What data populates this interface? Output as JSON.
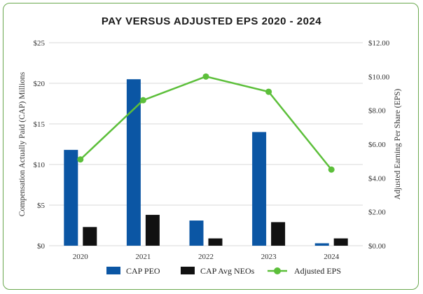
{
  "chart_data": {
    "type": "bar",
    "title": "PAY VERSUS ADJUSTED EPS 2020 - 2024",
    "categories": [
      "2020",
      "2021",
      "2022",
      "2023",
      "2024"
    ],
    "series": [
      {
        "name": "CAP PEO",
        "kind": "bar",
        "axis": "left",
        "color": "#0b56a4",
        "values": [
          11.8,
          20.5,
          3.1,
          14.0,
          0.3
        ]
      },
      {
        "name": "CAP Avg NEOs",
        "kind": "bar",
        "axis": "left",
        "color": "#111111",
        "values": [
          2.3,
          3.8,
          0.9,
          2.9,
          0.9
        ]
      },
      {
        "name": "Adjusted EPS",
        "kind": "line",
        "axis": "right",
        "color": "#5cbf3a",
        "values": [
          5.1,
          8.6,
          10.0,
          9.1,
          4.5
        ]
      }
    ],
    "y_left": {
      "label": "Compensation Actually Paid (CAP) Millions",
      "lim": [
        0,
        25
      ],
      "ticks": [
        0,
        5,
        10,
        15,
        20,
        25
      ],
      "tick_labels": [
        "$0",
        "$5",
        "$10",
        "$15",
        "$20",
        "$25"
      ]
    },
    "y_right": {
      "label": "Adjusted Earning Per Share (EPS)",
      "lim": [
        0,
        12
      ],
      "ticks": [
        0,
        2,
        4,
        6,
        8,
        10,
        12
      ],
      "tick_labels": [
        "$0.00",
        "$2.00",
        "$4.00",
        "$6.00",
        "$8.00",
        "$10.00",
        "$12.00"
      ]
    },
    "grid": true,
    "legend": "bottom-center"
  }
}
